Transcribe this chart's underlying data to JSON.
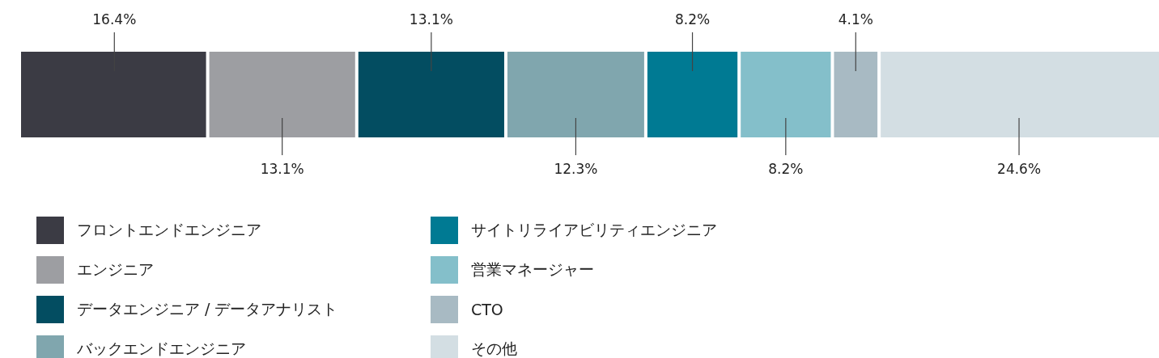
{
  "chart_data": {
    "type": "bar",
    "orientation": "horizontal",
    "stacked": true,
    "xlim": [
      0,
      100
    ],
    "legend": "bottom",
    "categories": [
      null
    ],
    "series": [
      {
        "name": "フロントエンドエンジニア",
        "color": "#3b3b44",
        "values": [
          16.4
        ],
        "value_labels": [
          "16.4%"
        ]
      },
      {
        "name": "エンジニア",
        "color": "#9d9ea2",
        "values": [
          13.1
        ],
        "value_labels": [
          "13.1%"
        ]
      },
      {
        "name": "データエンジニア / データアナリスト",
        "color": "#034d61",
        "values": [
          13.1
        ],
        "value_labels": [
          "13.1%"
        ]
      },
      {
        "name": "バックエンドエンジニア",
        "color": "#80a6ae",
        "values": [
          12.3
        ],
        "value_labels": [
          "12.3%"
        ]
      },
      {
        "name": "サイトリライアビリティエンジニア",
        "color": "#007a93",
        "values": [
          8.2
        ],
        "value_labels": [
          "8.2%"
        ]
      },
      {
        "name": "営業マネージャー",
        "color": "#84bfca",
        "values": [
          8.2
        ],
        "value_labels": [
          "8.2%"
        ]
      },
      {
        "name": "CTO",
        "color": "#a8bac3",
        "values": [
          4.1
        ],
        "value_labels": [
          "4.1%"
        ]
      },
      {
        "name": "その他",
        "color": "#d3dee3",
        "values": [
          24.6
        ],
        "value_labels": [
          "24.6%"
        ]
      }
    ]
  }
}
